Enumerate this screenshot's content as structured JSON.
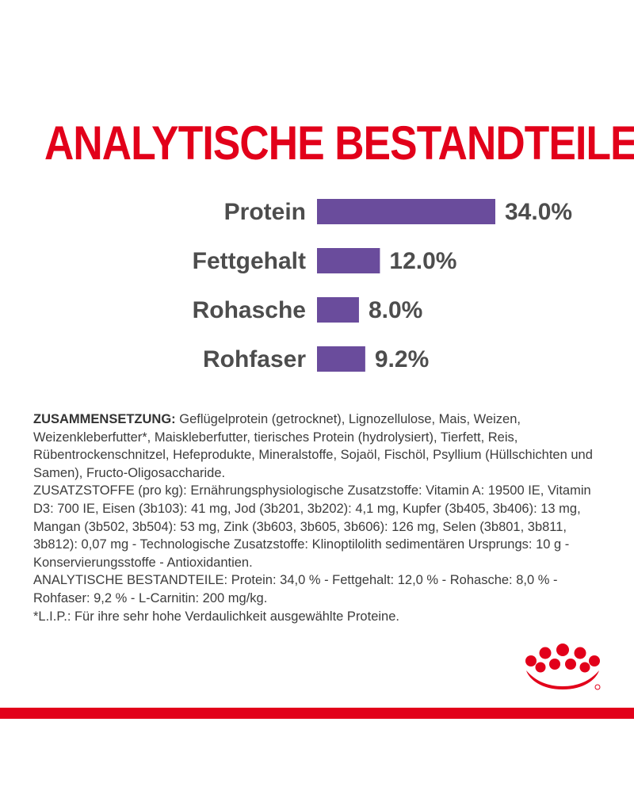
{
  "header": {
    "title": "ANALYTISCHE BESTANDTEILE"
  },
  "chart_data": {
    "type": "bar",
    "orientation": "horizontal",
    "categories": [
      "Protein",
      "Fettgehalt",
      "Rohasche",
      "Rohfaser"
    ],
    "values": [
      34.0,
      12.0,
      8.0,
      9.2
    ],
    "value_labels": [
      "34.0%",
      "12.0%",
      "8.0%",
      "9.2%"
    ],
    "title": "ANALYTISCHE BESTANDTEILE",
    "xlabel": "",
    "ylabel": "",
    "grid": false,
    "bar_color": "#6a4c9c"
  },
  "composition": {
    "heading": "ZUSAMMENSETZUNG:",
    "ingredients": " Geflügelprotein (getrocknet), Lignozellulose, Mais, Weizen, Weizenkleberfutter*, Maiskleberfutter, tierisches Protein (hydrolysiert), Tierfett, Reis, Rübentrockenschnitzel, Hefeprodukte, Mineralstoffe, Sojaöl, Fischöl, Psyllium (Hüllschichten und Samen), Fructo-Oligosaccharide.",
    "additives": "ZUSATZSTOFFE (pro kg): Ernährungsphysiologische Zusatzstoffe: Vitamin A: 19500 IE, Vitamin D3: 700 IE, Eisen (3b103): 41 mg, Jod (3b201, 3b202): 4,1 mg, Kupfer (3b405, 3b406): 13 mg, Mangan (3b502, 3b504): 53 mg, Zink (3b603, 3b605, 3b606): 126 mg, Selen (3b801, 3b811, 3b812): 0,07 mg - Technologische Zusatzstoffe: Klinoptilolith sedimentären Ursprungs: 10 g - Konservierungsstoffe - Antioxidantien.",
    "analytical": "ANALYTISCHE BESTANDTEILE: Protein: 34,0 % - Fettgehalt: 12,0 % - Rohasche: 8,0 % - Rohfaser: 9,2 % - L-Carnitin: 200 mg/kg.",
    "footnote": "*L.I.P.: Für ihre sehr hohe Verdaulichkeit ausgewählte Proteine."
  },
  "brand": {
    "logo_icon": "royal-canin-crown-icon",
    "accent_color": "#e2001a"
  }
}
